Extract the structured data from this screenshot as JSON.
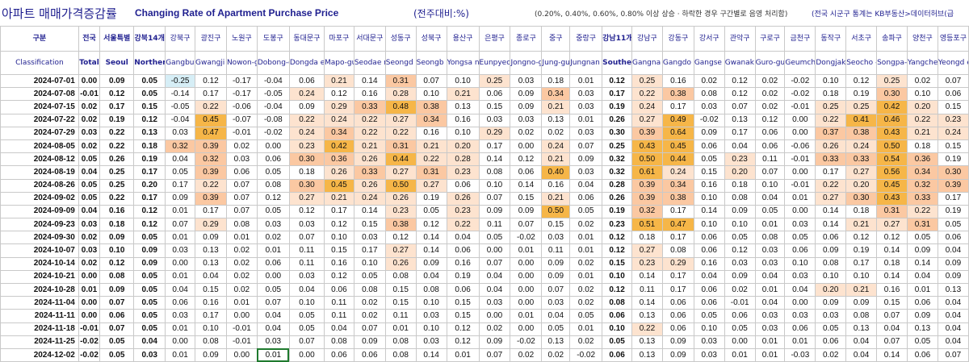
{
  "title": {
    "korean": "아파트 매매가격증감률",
    "english": "Changing Rate of Apartment Purchase Price",
    "unit": "(전주대비:%)",
    "note": "(0.20%, 0.40%, 0.60%, 0.80% 이상 상승 · 하락한 경우 구간별로 음영 처리함)",
    "source": "(전국 시군구 통계는 KB부동산>데이터허브(급"
  },
  "colors": {
    "shade_level1": "#fde3cf",
    "shade_level2": "#fbc8a2",
    "shade_level3": "#f6b648",
    "shade_negative": "#d6eef6",
    "header_text": "#1f1f8f"
  },
  "header": {
    "corner_kr": "구분",
    "corner_en": "Classification",
    "columns": [
      {
        "kr": "전국",
        "en": "Total"
      },
      {
        "kr": "서울특별",
        "en": "Seoul"
      },
      {
        "kr": "강북14개",
        "en": "Norther n seoul"
      },
      {
        "kr": "강북구",
        "en": "Gangbu k-gu"
      },
      {
        "kr": "광진구",
        "en": "Gwangji n-gu"
      },
      {
        "kr": "노원구",
        "en": "Nowon-gu"
      },
      {
        "kr": "도봉구",
        "en": "Dobong-gu"
      },
      {
        "kr": "동대문구",
        "en": "Dongda emun-gu"
      },
      {
        "kr": "마포구",
        "en": "Mapo-gu"
      },
      {
        "kr": "서대문구",
        "en": "Seodae mun-gu"
      },
      {
        "kr": "성동구",
        "en": "Seongd ong-gu"
      },
      {
        "kr": "성북구",
        "en": "Seongb uk-gu"
      },
      {
        "kr": "용산구",
        "en": "Yongsa n-gu"
      },
      {
        "kr": "은평구",
        "en": "Eunpyeo ng-gu"
      },
      {
        "kr": "종로구",
        "en": "Jongno-gu"
      },
      {
        "kr": "중구",
        "en": "Jung-gu"
      },
      {
        "kr": "중랑구",
        "en": "Jungnan g-gu"
      },
      {
        "kr": "강남11개",
        "en": "Souther n Seoul"
      },
      {
        "kr": "강남구",
        "en": "Gangna m-gu"
      },
      {
        "kr": "강동구",
        "en": "Gangdo ng-gu"
      },
      {
        "kr": "강서구",
        "en": "Gangse o-gu"
      },
      {
        "kr": "관악구",
        "en": "Gwanak -gu"
      },
      {
        "kr": "구로구",
        "en": "Guro-gu"
      },
      {
        "kr": "금천구",
        "en": "Geumch eon-gu"
      },
      {
        "kr": "동작구",
        "en": "Dongjak -gu"
      },
      {
        "kr": "서초구",
        "en": "Seocho -gu"
      },
      {
        "kr": "송파구",
        "en": "Songpa- gu"
      },
      {
        "kr": "양천구",
        "en": "Yangche on-gu"
      },
      {
        "kr": "영등포구",
        "en": "Yeongd eungpo-"
      }
    ]
  },
  "rows": [
    {
      "date": "2024-07-01",
      "values": [
        "0.00",
        "0.09",
        "0.05",
        "-0.25",
        "0.12",
        "-0.17",
        "-0.04",
        "0.06",
        "0.21",
        "0.14",
        "0.31",
        "0.07",
        "0.10",
        "0.25",
        "0.03",
        "0.18",
        "0.01",
        "0.12",
        "0.25",
        "0.16",
        "0.02",
        "0.12",
        "0.02",
        "-0.02",
        "0.10",
        "0.12",
        "0.25",
        "0.02",
        "0.07"
      ]
    },
    {
      "date": "2024-07-08",
      "values": [
        "-0.01",
        "0.12",
        "0.05",
        "-0.14",
        "0.17",
        "-0.17",
        "-0.05",
        "0.24",
        "0.12",
        "0.16",
        "0.28",
        "0.10",
        "0.21",
        "0.06",
        "0.09",
        "0.34",
        "0.03",
        "0.17",
        "0.22",
        "0.38",
        "0.08",
        "0.12",
        "0.02",
        "-0.02",
        "0.18",
        "0.19",
        "0.30",
        "0.10",
        "0.06"
      ]
    },
    {
      "date": "2024-07-15",
      "values": [
        "0.02",
        "0.17",
        "0.15",
        "-0.05",
        "0.22",
        "-0.06",
        "-0.04",
        "0.09",
        "0.29",
        "0.33",
        "0.48",
        "0.38",
        "0.13",
        "0.15",
        "0.09",
        "0.21",
        "0.03",
        "0.19",
        "0.24",
        "0.17",
        "0.03",
        "0.07",
        "0.02",
        "-0.01",
        "0.25",
        "0.25",
        "0.42",
        "0.20",
        "0.15"
      ]
    },
    {
      "date": "2024-07-22",
      "values": [
        "0.02",
        "0.19",
        "0.12",
        "-0.04",
        "0.45",
        "-0.07",
        "-0.08",
        "0.22",
        "0.24",
        "0.22",
        "0.27",
        "0.34",
        "0.16",
        "0.03",
        "0.03",
        "0.13",
        "0.01",
        "0.26",
        "0.27",
        "0.49",
        "-0.02",
        "0.13",
        "0.12",
        "0.00",
        "0.22",
        "0.41",
        "0.46",
        "0.22",
        "0.23"
      ]
    },
    {
      "date": "2024-07-29",
      "values": [
        "0.03",
        "0.22",
        "0.13",
        "0.03",
        "0.47",
        "-0.01",
        "-0.02",
        "0.24",
        "0.34",
        "0.22",
        "0.22",
        "0.16",
        "0.10",
        "0.29",
        "0.02",
        "0.02",
        "0.03",
        "0.30",
        "0.39",
        "0.64",
        "0.09",
        "0.17",
        "0.06",
        "0.00",
        "0.37",
        "0.38",
        "0.43",
        "0.21",
        "0.24"
      ]
    },
    {
      "date": "2024-08-05",
      "values": [
        "0.02",
        "0.22",
        "0.18",
        "0.32",
        "0.39",
        "0.02",
        "0.00",
        "0.23",
        "0.42",
        "0.21",
        "0.31",
        "0.21",
        "0.20",
        "0.17",
        "0.00",
        "0.24",
        "0.07",
        "0.25",
        "0.43",
        "0.45",
        "0.06",
        "0.04",
        "0.06",
        "-0.06",
        "0.26",
        "0.24",
        "0.50",
        "0.18",
        "0.15"
      ]
    },
    {
      "date": "2024-08-12",
      "values": [
        "0.05",
        "0.26",
        "0.19",
        "0.04",
        "0.32",
        "0.03",
        "0.06",
        "0.30",
        "0.36",
        "0.26",
        "0.44",
        "0.22",
        "0.28",
        "0.14",
        "0.12",
        "0.21",
        "0.09",
        "0.32",
        "0.50",
        "0.44",
        "0.05",
        "0.23",
        "0.11",
        "-0.01",
        "0.33",
        "0.33",
        "0.54",
        "0.36",
        "0.19"
      ]
    },
    {
      "date": "2024-08-19",
      "values": [
        "0.04",
        "0.25",
        "0.17",
        "0.05",
        "0.39",
        "0.06",
        "0.05",
        "0.18",
        "0.26",
        "0.33",
        "0.27",
        "0.31",
        "0.23",
        "0.08",
        "0.06",
        "0.40",
        "0.03",
        "0.32",
        "0.61",
        "0.24",
        "0.15",
        "0.20",
        "0.07",
        "0.00",
        "0.17",
        "0.27",
        "0.56",
        "0.34",
        "0.30"
      ]
    },
    {
      "date": "2024-08-26",
      "values": [
        "0.05",
        "0.25",
        "0.20",
        "0.17",
        "0.22",
        "0.07",
        "0.08",
        "0.30",
        "0.45",
        "0.26",
        "0.50",
        "0.27",
        "0.06",
        "0.10",
        "0.14",
        "0.16",
        "0.04",
        "0.28",
        "0.39",
        "0.34",
        "0.16",
        "0.18",
        "0.10",
        "-0.01",
        "0.22",
        "0.20",
        "0.45",
        "0.32",
        "0.39"
      ]
    },
    {
      "date": "2024-09-02",
      "values": [
        "0.05",
        "0.22",
        "0.17",
        "0.09",
        "0.39",
        "0.07",
        "0.12",
        "0.27",
        "0.21",
        "0.24",
        "0.26",
        "0.19",
        "0.26",
        "0.07",
        "0.15",
        "0.21",
        "0.06",
        "0.26",
        "0.39",
        "0.38",
        "0.10",
        "0.08",
        "0.04",
        "0.01",
        "0.27",
        "0.30",
        "0.43",
        "0.33",
        "0.17"
      ]
    },
    {
      "date": "2024-09-09",
      "values": [
        "0.04",
        "0.16",
        "0.12",
        "0.01",
        "0.17",
        "0.07",
        "0.05",
        "0.12",
        "0.17",
        "0.14",
        "0.23",
        "0.05",
        "0.23",
        "0.09",
        "0.09",
        "0.50",
        "0.05",
        "0.19",
        "0.32",
        "0.17",
        "0.14",
        "0.09",
        "0.05",
        "0.00",
        "0.14",
        "0.18",
        "0.31",
        "0.22",
        "0.19"
      ]
    },
    {
      "date": "2024-09-23",
      "values": [
        "0.03",
        "0.18",
        "0.12",
        "0.07",
        "0.29",
        "0.08",
        "0.03",
        "0.03",
        "0.12",
        "0.15",
        "0.38",
        "0.12",
        "0.22",
        "0.11",
        "0.07",
        "0.15",
        "0.02",
        "0.23",
        "0.51",
        "0.47",
        "0.10",
        "0.10",
        "0.01",
        "0.03",
        "0.14",
        "0.21",
        "0.27",
        "0.31",
        "0.05"
      ]
    },
    {
      "date": "2024-09-30",
      "values": [
        "0.02",
        "0.09",
        "0.05",
        "0.01",
        "0.09",
        "0.01",
        "0.02",
        "0.07",
        "0.10",
        "0.03",
        "0.12",
        "0.14",
        "0.04",
        "0.05",
        "-0.02",
        "0.03",
        "0.01",
        "0.12",
        "0.18",
        "0.17",
        "0.06",
        "0.05",
        "0.08",
        "0.05",
        "0.06",
        "0.12",
        "0.12",
        "0.05",
        "0.06"
      ]
    },
    {
      "date": "2024-10-07",
      "values": [
        "0.03",
        "0.10",
        "0.09",
        "0.03",
        "0.13",
        "0.02",
        "0.01",
        "0.11",
        "0.15",
        "0.17",
        "0.27",
        "0.14",
        "0.06",
        "0.00",
        "0.01",
        "0.11",
        "0.01",
        "0.12",
        "0.27",
        "0.08",
        "0.06",
        "0.12",
        "0.03",
        "0.06",
        "0.09",
        "0.19",
        "0.14",
        "0.09",
        "0.04"
      ]
    },
    {
      "date": "2024-10-14",
      "values": [
        "0.02",
        "0.12",
        "0.09",
        "0.00",
        "0.13",
        "0.02",
        "0.06",
        "0.11",
        "0.16",
        "0.10",
        "0.26",
        "0.09",
        "0.16",
        "0.07",
        "0.00",
        "0.09",
        "0.02",
        "0.15",
        "0.23",
        "0.29",
        "0.16",
        "0.03",
        "0.03",
        "0.10",
        "0.08",
        "0.17",
        "0.18",
        "0.14",
        "0.09"
      ]
    },
    {
      "date": "2024-10-21",
      "values": [
        "0.00",
        "0.08",
        "0.05",
        "0.01",
        "0.04",
        "0.02",
        "0.00",
        "0.03",
        "0.12",
        "0.05",
        "0.08",
        "0.04",
        "0.19",
        "0.04",
        "0.00",
        "0.09",
        "0.01",
        "0.10",
        "0.14",
        "0.17",
        "0.04",
        "0.09",
        "0.04",
        "0.03",
        "0.10",
        "0.10",
        "0.14",
        "0.04",
        "0.09"
      ]
    },
    {
      "date": "2024-10-28",
      "values": [
        "0.01",
        "0.09",
        "0.05",
        "0.04",
        "0.15",
        "0.02",
        "0.05",
        "0.04",
        "0.06",
        "0.08",
        "0.15",
        "0.08",
        "0.06",
        "0.04",
        "0.00",
        "0.07",
        "0.02",
        "0.12",
        "0.11",
        "0.17",
        "0.06",
        "0.02",
        "0.01",
        "0.04",
        "0.20",
        "0.21",
        "0.16",
        "0.01",
        "0.13"
      ]
    },
    {
      "date": "2024-11-04",
      "values": [
        "0.00",
        "0.07",
        "0.05",
        "0.06",
        "0.16",
        "0.01",
        "0.07",
        "0.10",
        "0.11",
        "0.02",
        "0.15",
        "0.10",
        "0.15",
        "0.03",
        "0.00",
        "0.03",
        "0.02",
        "0.08",
        "0.14",
        "0.06",
        "0.06",
        "-0.01",
        "0.04",
        "0.00",
        "0.09",
        "0.09",
        "0.15",
        "0.06",
        "0.04"
      ]
    },
    {
      "date": "2024-11-11",
      "values": [
        "0.00",
        "0.06",
        "0.05",
        "0.03",
        "0.17",
        "0.00",
        "0.04",
        "0.05",
        "0.11",
        "0.02",
        "0.11",
        "0.03",
        "0.15",
        "0.00",
        "0.01",
        "0.04",
        "0.05",
        "0.06",
        "0.13",
        "0.06",
        "0.05",
        "0.06",
        "0.03",
        "0.03",
        "0.03",
        "0.08",
        "0.07",
        "0.09",
        "0.04"
      ]
    },
    {
      "date": "2024-11-18",
      "values": [
        "-0.01",
        "0.07",
        "0.05",
        "0.01",
        "0.10",
        "-0.01",
        "0.04",
        "0.05",
        "0.04",
        "0.07",
        "0.01",
        "0.10",
        "0.12",
        "0.02",
        "0.00",
        "0.05",
        "0.01",
        "0.10",
        "0.22",
        "0.06",
        "0.10",
        "0.05",
        "0.03",
        "0.06",
        "0.05",
        "0.13",
        "0.04",
        "0.13",
        "0.04"
      ]
    },
    {
      "date": "2024-11-25",
      "values": [
        "-0.02",
        "0.05",
        "0.04",
        "0.00",
        "0.08",
        "-0.01",
        "0.03",
        "0.07",
        "0.08",
        "0.09",
        "0.08",
        "0.03",
        "0.12",
        "0.09",
        "-0.02",
        "0.13",
        "0.02",
        "0.05",
        "0.13",
        "0.09",
        "0.03",
        "0.00",
        "0.01",
        "0.01",
        "0.06",
        "0.04",
        "0.07",
        "0.05",
        "0.04"
      ]
    },
    {
      "date": "2024-12-02",
      "values": [
        "-0.02",
        "0.05",
        "0.03",
        "0.01",
        "0.09",
        "0.00",
        "0.01",
        "0.00",
        "0.06",
        "0.06",
        "0.08",
        "0.14",
        "0.01",
        "0.07",
        "0.02",
        "0.02",
        "-0.02",
        "0.06",
        "0.13",
        "0.09",
        "0.03",
        "0.01",
        "0.01",
        "-0.03",
        "0.02",
        "0.04",
        "0.14",
        "0.06",
        "0.07"
      ]
    }
  ]
}
